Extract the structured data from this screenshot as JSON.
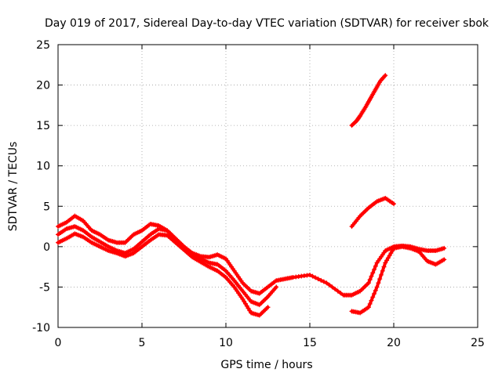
{
  "chart_data": {
    "type": "scatter",
    "title": "Day 019 of 2017, Sidereal Day-to-day VTEC variation (SDTVAR) for receiver sbok",
    "xlabel": "GPS time / hours",
    "ylabel": "SDTVAR / TECUs",
    "xlim": [
      0,
      25
    ],
    "ylim": [
      -10,
      25
    ],
    "xticks": [
      "0",
      "5",
      "10",
      "15",
      "20",
      "25"
    ],
    "yticks": [
      "-10",
      "-5",
      "0",
      "5",
      "10",
      "15",
      "20",
      "25"
    ],
    "grid": true,
    "marker": "plus",
    "color": "#ff0000",
    "series": [
      {
        "name": "track-1",
        "x": [
          0.0,
          0.5,
          1.0,
          1.5,
          2.0,
          2.5,
          3.0,
          3.5,
          4.0,
          4.5,
          5.0,
          5.5,
          6.0,
          6.5,
          7.0,
          7.5,
          8.0,
          8.5,
          9.0,
          9.5,
          10.0,
          10.5,
          11.0,
          11.5,
          12.0,
          12.5,
          13.0,
          13.5,
          14.0,
          15.0,
          16.0,
          17.0,
          17.5,
          18.0,
          18.5,
          19.0,
          19.5,
          20.0,
          20.5,
          21.0,
          21.5,
          22.0,
          22.5,
          23.0
        ],
        "y": [
          2.5,
          3.0,
          3.8,
          3.2,
          2.0,
          1.5,
          0.8,
          0.5,
          0.5,
          1.5,
          2.0,
          2.8,
          2.6,
          2.0,
          1.0,
          0.0,
          -0.8,
          -1.2,
          -1.3,
          -1.0,
          -1.5,
          -3.0,
          -4.5,
          -5.5,
          -5.8,
          -5.0,
          -4.2,
          -4.0,
          -3.8,
          -3.5,
          -4.5,
          -6.0,
          -6.0,
          -5.5,
          -4.5,
          -2.0,
          -0.5,
          0.0,
          0.1,
          0.0,
          -0.3,
          -0.5,
          -0.5,
          -0.2
        ]
      },
      {
        "name": "track-2",
        "x": [
          0.0,
          0.5,
          1.0,
          1.5,
          2.0,
          2.5,
          3.0,
          3.5,
          4.0,
          4.5,
          5.0,
          5.5,
          6.0,
          6.5,
          7.0,
          7.5,
          8.0,
          8.5,
          9.0,
          9.5,
          10.0,
          10.5,
          11.0,
          11.5,
          12.0,
          12.5,
          13.0
        ],
        "y": [
          1.5,
          2.2,
          2.5,
          2.0,
          1.2,
          0.6,
          0.0,
          -0.5,
          -0.8,
          -0.3,
          0.6,
          1.5,
          2.2,
          2.0,
          1.0,
          0.0,
          -1.0,
          -1.5,
          -2.0,
          -2.2,
          -3.0,
          -4.2,
          -5.5,
          -6.8,
          -7.2,
          -6.2,
          -5.0
        ]
      },
      {
        "name": "track-3",
        "x": [
          0.0,
          0.5,
          1.0,
          1.5,
          2.0,
          2.5,
          3.0,
          3.5,
          4.0,
          4.5,
          5.0,
          5.5,
          6.0,
          6.5,
          7.0,
          7.5,
          8.0,
          8.5,
          9.0,
          9.5,
          10.0,
          10.5,
          11.0,
          11.5,
          12.0,
          12.5
        ],
        "y": [
          0.5,
          1.0,
          1.6,
          1.2,
          0.5,
          0.0,
          -0.5,
          -0.8,
          -1.2,
          -0.8,
          0.0,
          0.8,
          1.5,
          1.4,
          0.5,
          -0.4,
          -1.3,
          -1.9,
          -2.5,
          -3.0,
          -3.8,
          -5.0,
          -6.5,
          -8.2,
          -8.5,
          -7.5
        ]
      },
      {
        "name": "track-4",
        "x": [
          17.5,
          18.0,
          18.5,
          19.0,
          19.5,
          20.0,
          20.5,
          21.0,
          21.5,
          22.0,
          22.5,
          23.0
        ],
        "y": [
          -8.0,
          -8.2,
          -7.5,
          -5.0,
          -2.0,
          -0.2,
          0.0,
          -0.2,
          -0.6,
          -1.8,
          -2.2,
          -1.6
        ]
      },
      {
        "name": "track-5",
        "x": [
          17.5,
          17.8,
          18.0,
          18.3,
          18.6,
          18.9,
          19.2,
          19.5
        ],
        "y": [
          15.0,
          15.6,
          16.2,
          17.2,
          18.3,
          19.4,
          20.5,
          21.2
        ]
      },
      {
        "name": "track-6",
        "x": [
          17.5,
          18.0,
          18.5,
          19.0,
          19.5,
          20.0
        ],
        "y": [
          2.5,
          3.8,
          4.8,
          5.6,
          6.0,
          5.3
        ]
      }
    ]
  }
}
